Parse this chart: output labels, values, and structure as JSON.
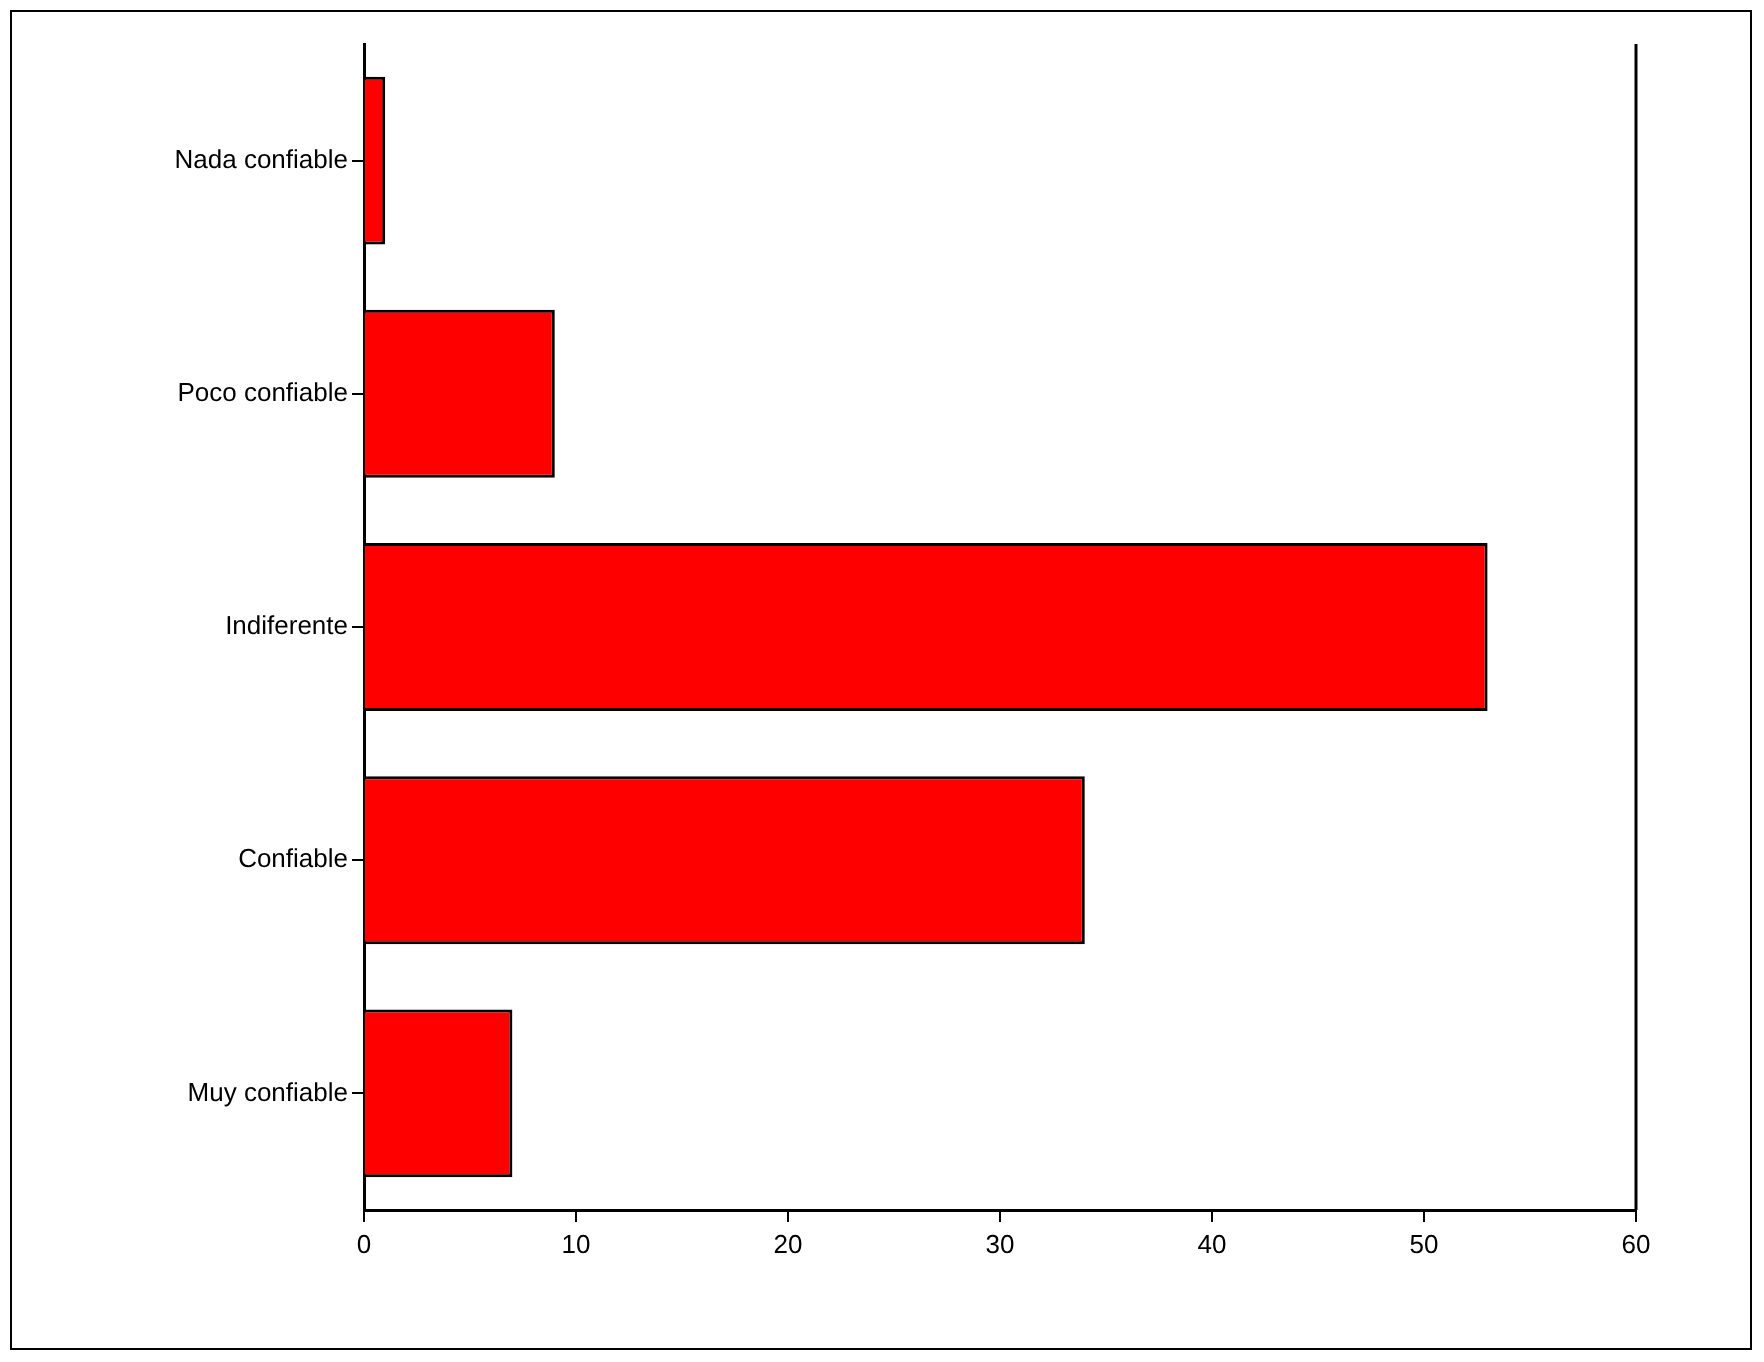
{
  "chart_data": {
    "type": "bar",
    "orientation": "horizontal",
    "categories": [
      "Nada confiable",
      "Poco confiable",
      "Indiferente",
      "Confiable",
      "Muy confiable"
    ],
    "values": [
      1,
      9,
      53,
      34,
      7
    ],
    "color": "#ff0000",
    "xlim": [
      0,
      60
    ],
    "xticks": [
      0,
      10,
      20,
      30,
      40,
      50,
      60
    ],
    "grid": false,
    "legend": false
  }
}
